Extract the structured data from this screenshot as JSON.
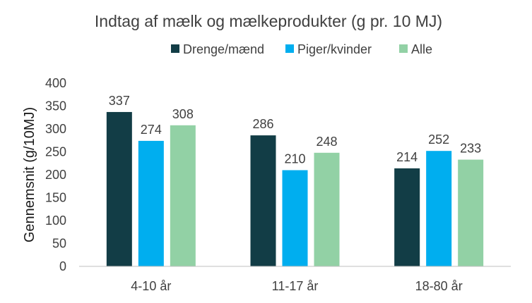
{
  "chart_data": {
    "type": "bar",
    "title": "Indtag af mælk og mælkeprodukter (g pr. 10 MJ)",
    "xlabel": "",
    "ylabel": "Gennemsnit (g/10MJ)",
    "ylim": [
      0,
      400
    ],
    "yticks": [
      0,
      50,
      100,
      150,
      200,
      250,
      300,
      350,
      400
    ],
    "grid": false,
    "legend_position": "top",
    "categories": [
      "4-10 år",
      "11-17 år",
      "18-80 år"
    ],
    "series": [
      {
        "name": "Drenge/mænd",
        "color": "#123d46",
        "values": [
          337,
          286,
          214
        ]
      },
      {
        "name": "Piger/kvinder",
        "color": "#00aeef",
        "values": [
          274,
          210,
          252
        ]
      },
      {
        "name": "Alle",
        "color": "#92d1a5",
        "values": [
          308,
          248,
          233
        ]
      }
    ]
  }
}
